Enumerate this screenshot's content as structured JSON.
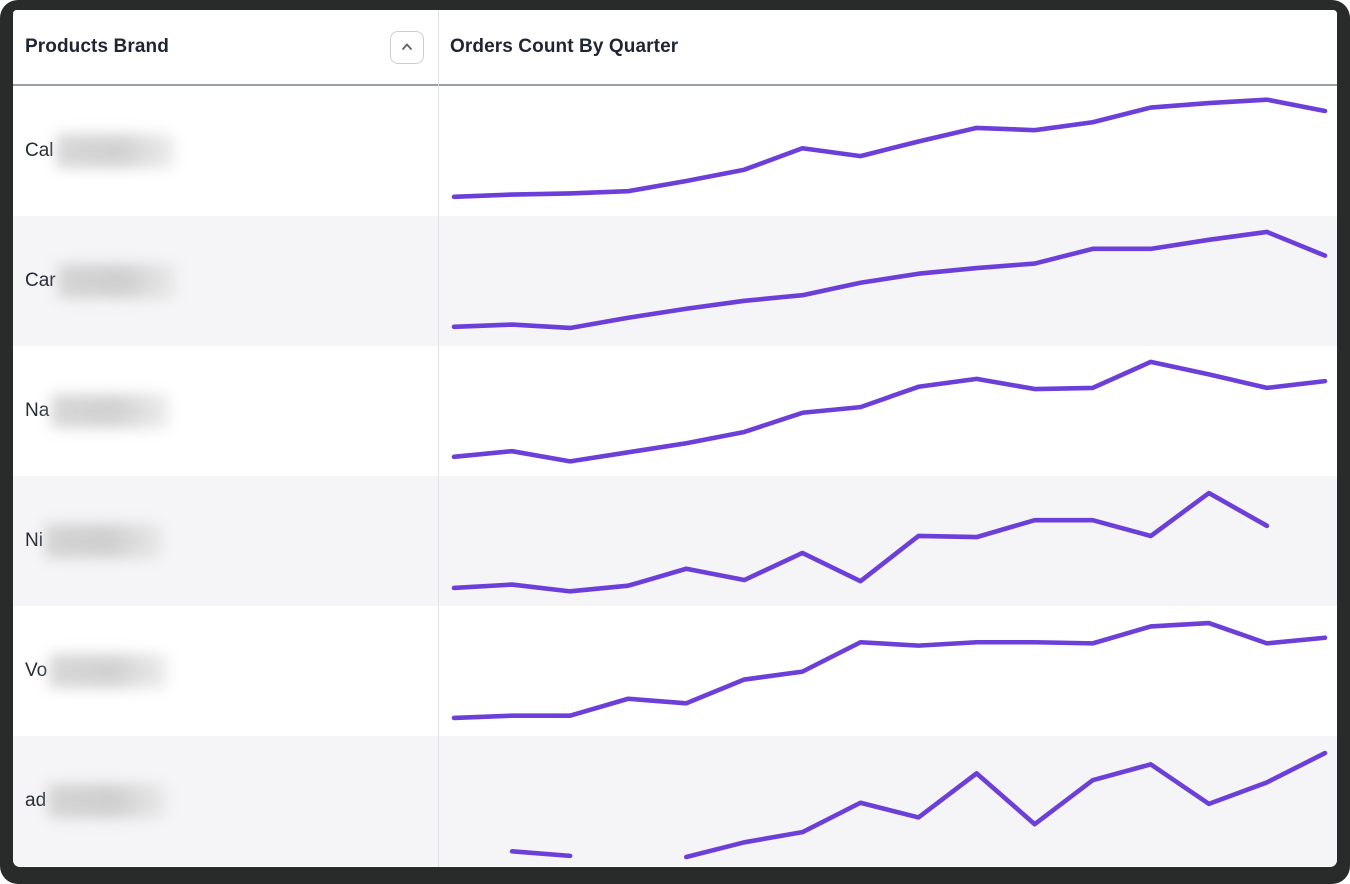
{
  "table": {
    "columns": [
      {
        "label": "Products Brand"
      },
      {
        "label": "Orders Count By Quarter"
      }
    ],
    "sort": {
      "icon": "chevron-up-icon",
      "state": "ascending"
    }
  },
  "colors": {
    "sparkline": "#6C40D8",
    "stripe_row_bg": "#f5f4f6",
    "header_underline": "#9aa0a6",
    "column_divider": "#dfe1e5",
    "text": "#1f2532",
    "window_frame": "#282b2a"
  },
  "rows": [
    {
      "brand_prefix": "Cal",
      "brand_redacted": true
    },
    {
      "brand_prefix": "Car",
      "brand_redacted": true
    },
    {
      "brand_prefix": "Na",
      "brand_redacted": true
    },
    {
      "brand_prefix": "Ni",
      "brand_redacted": true
    },
    {
      "brand_prefix": "Vo",
      "brand_redacted": true
    },
    {
      "brand_prefix": "ad",
      "brand_redacted": true
    }
  ],
  "chart_data": {
    "type": "line",
    "title": "Orders Count By Quarter",
    "note": "sparklines per brand; no axes or tick labels visible, values are relative 0-100 estimates; null = missing quarter",
    "x_points": 16,
    "grid": false,
    "legend": false,
    "series": [
      {
        "name": "Cal (redacted)",
        "values": [
          9,
          11,
          12,
          14,
          23,
          33,
          52,
          45,
          58,
          70,
          68,
          75,
          88,
          92,
          95,
          85
        ]
      },
      {
        "name": "Car (redacted)",
        "values": [
          9,
          11,
          8,
          17,
          25,
          32,
          37,
          48,
          56,
          61,
          65,
          78,
          78,
          86,
          93,
          72
        ]
      },
      {
        "name": "Na (redacted)",
        "values": [
          9,
          14,
          5,
          13,
          21,
          31,
          48,
          53,
          71,
          78,
          69,
          70,
          93,
          82,
          70,
          76
        ]
      },
      {
        "name": "Ni (redacted)",
        "values": [
          8,
          11,
          5,
          10,
          25,
          15,
          39,
          14,
          54,
          53,
          68,
          68,
          54,
          92,
          63,
          null
        ]
      },
      {
        "name": "Vo (redacted)",
        "values": [
          8,
          10,
          10,
          25,
          21,
          42,
          49,
          75,
          72,
          75,
          75,
          74,
          89,
          92,
          74,
          79
        ]
      },
      {
        "name": "ad (redacted)",
        "values": [
          null,
          5,
          1,
          null,
          0,
          13,
          22,
          48,
          35,
          74,
          29,
          68,
          82,
          47,
          66,
          92
        ]
      }
    ]
  }
}
